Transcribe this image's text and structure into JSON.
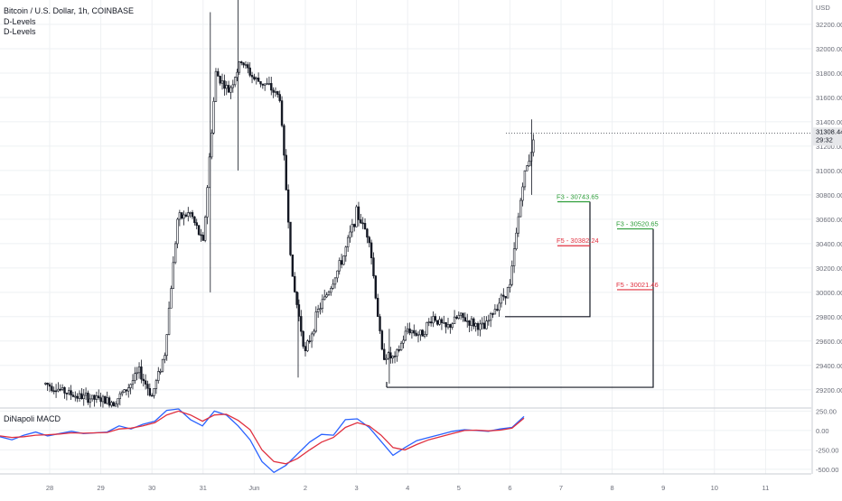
{
  "header": {
    "symbol_line": "Bitcoin / U.S. Dollar, 1h, COINBASE",
    "indicator_1": "D-Levels",
    "indicator_2": "D-Levels"
  },
  "price_axis": {
    "currency": "USD",
    "ticks": [
      "32200.00",
      "32000.00",
      "31800.00",
      "31600.00",
      "31400.00",
      "31200.00",
      "31000.00",
      "30800.00",
      "30600.00",
      "30400.00",
      "30200.00",
      "30000.00",
      "29800.00",
      "29600.00",
      "29400.00",
      "29200.00"
    ],
    "last_price": "31308.44",
    "countdown": "29:32"
  },
  "time_axis": {
    "ticks": [
      "28",
      "29",
      "30",
      "31",
      "Jun",
      "2",
      "3",
      "4",
      "5",
      "6",
      "7",
      "8",
      "9",
      "10",
      "11"
    ]
  },
  "macd_panel": {
    "title": "DiNapoli MACD",
    "ticks": [
      "250.00",
      "0.00",
      "-250.00",
      "-500.00"
    ]
  },
  "levels": [
    {
      "label": "F3 - 30743.65",
      "color": "#2e9e3a"
    },
    {
      "label": "F5 - 30382.24",
      "color": "#e0303f"
    },
    {
      "label": "F3 - 30520.65",
      "color": "#2e9e3a"
    },
    {
      "label": "F5 - 30021.46",
      "color": "#e0303f"
    }
  ],
  "colors": {
    "candle": "#131722",
    "grid": "#eef0f3",
    "macd_line": "#2962ff",
    "signal_line": "#e0303f",
    "axis_text": "#6a6d78"
  },
  "chart_data": [
    {
      "type": "candlestick",
      "title": "Bitcoin / U.S. Dollar, 1h, COINBASE",
      "ylabel": "USD",
      "ylim": [
        29050,
        32400
      ],
      "x_ticks": [
        "28",
        "29",
        "30",
        "31",
        "Jun",
        "2",
        "3",
        "4",
        "5",
        "6",
        "7",
        "8",
        "9",
        "10",
        "11"
      ],
      "close_path": [
        [
          "05-27 22:00",
          29250
        ],
        [
          "05-28 12:00",
          29150
        ],
        [
          "05-29 06:00",
          29100
        ],
        [
          "05-29 12:00",
          29200
        ],
        [
          "05-29 18:00",
          29350
        ],
        [
          "05-30 00:00",
          29150
        ],
        [
          "05-30 06:00",
          29500
        ],
        [
          "05-30 12:00",
          30600
        ],
        [
          "05-30 18:00",
          30650
        ],
        [
          "05-31 00:00",
          30400
        ],
        [
          "05-31 06:00",
          31800
        ],
        [
          "05-31 12:00",
          31650
        ],
        [
          "05-31 18:00",
          31900
        ],
        [
          "06-01 00:00",
          31750
        ],
        [
          "06-01 06:00",
          31700
        ],
        [
          "06-01 12:00",
          31600
        ],
        [
          "06-01 18:00",
          30100
        ],
        [
          "06-02 00:00",
          29500
        ],
        [
          "06-02 06:00",
          29850
        ],
        [
          "06-02 12:00",
          30050
        ],
        [
          "06-02 18:00",
          30300
        ],
        [
          "06-03 00:00",
          30650
        ],
        [
          "06-03 06:00",
          30450
        ],
        [
          "06-03 12:00",
          29500
        ],
        [
          "06-03 18:00",
          29450
        ],
        [
          "06-04 00:00",
          29700
        ],
        [
          "06-04 06:00",
          29650
        ],
        [
          "06-04 12:00",
          29800
        ],
        [
          "06-04 18:00",
          29700
        ],
        [
          "06-05 00:00",
          29800
        ],
        [
          "06-05 06:00",
          29750
        ],
        [
          "06-05 12:00",
          29700
        ],
        [
          "06-05 18:00",
          29900
        ],
        [
          "06-06 00:00",
          30050
        ],
        [
          "06-06 06:00",
          30900
        ],
        [
          "06-06 12:00",
          31300
        ]
      ],
      "last_price": 31308.44,
      "levels": [
        {
          "label": "F3 - 30743.65",
          "value": 30743.65,
          "color": "green"
        },
        {
          "label": "F5 - 30382.24",
          "value": 30382.24,
          "color": "red"
        },
        {
          "label": "F3 - 30520.65",
          "value": 30520.65,
          "color": "green"
        },
        {
          "label": "F5 - 30021.46",
          "value": 30021.46,
          "color": "red"
        }
      ],
      "brackets": [
        {
          "low": 29800,
          "high": 30743.65
        },
        {
          "low": 29220,
          "high": 30520.65
        }
      ]
    },
    {
      "type": "line",
      "title": "DiNapoli MACD",
      "ylim": [
        -560,
        290
      ],
      "y_ticks": [
        250,
        0,
        -250,
        -500
      ],
      "series": [
        {
          "values": [
            -80,
            -120,
            -60,
            -20,
            -70,
            -40,
            -10,
            -40,
            -30,
            -20,
            60,
            20,
            80,
            120,
            260,
            310,
            140,
            60,
            250,
            200,
            60,
            -120,
            -400,
            -540,
            -450,
            -300,
            -150,
            -50,
            -60,
            140,
            150,
            40,
            -140,
            -320,
            -220,
            -130,
            -90,
            -50,
            -10,
            10,
            0,
            -10,
            20,
            40,
            180
          ]
        },
        {
          "values": [
            -70,
            -90,
            -80,
            -60,
            -55,
            -45,
            -30,
            -35,
            -30,
            -25,
            20,
            30,
            60,
            100,
            200,
            250,
            200,
            120,
            200,
            210,
            130,
            10,
            -250,
            -400,
            -430,
            -360,
            -250,
            -150,
            -90,
            40,
            100,
            60,
            -60,
            -220,
            -250,
            -180,
            -120,
            -80,
            -40,
            0,
            5,
            -5,
            5,
            30,
            160
          ]
        }
      ]
    }
  ]
}
